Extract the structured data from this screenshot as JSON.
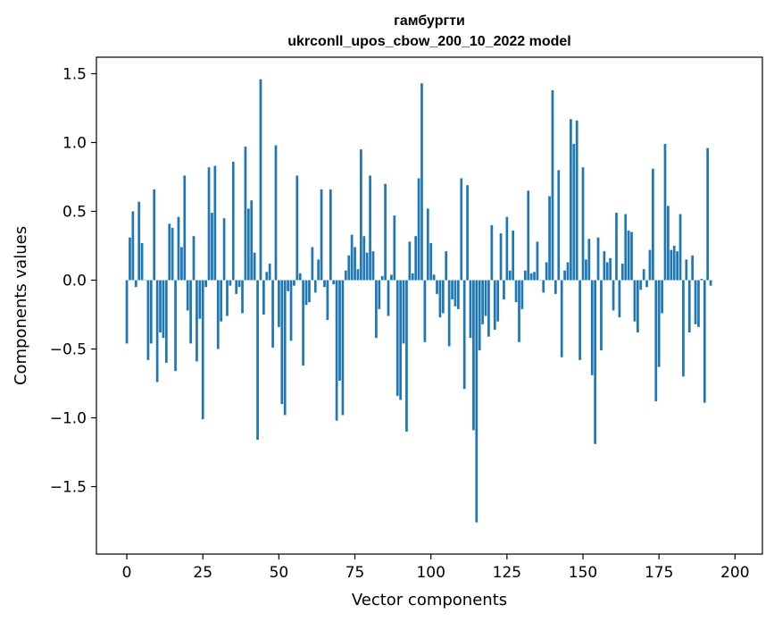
{
  "chart_data": {
    "type": "bar",
    "title": "гамбургти",
    "subtitle": "ukrconll_upos_cbow_200_10_2022 model",
    "xlabel": "Vector components",
    "ylabel": "Components values",
    "xlim": [
      -10,
      209
    ],
    "ylim": [
      -1.99,
      1.62
    ],
    "xticks": [
      0,
      25,
      50,
      75,
      100,
      125,
      150,
      175,
      200
    ],
    "xtick_labels": [
      "0",
      "25",
      "50",
      "75",
      "100",
      "125",
      "150",
      "175",
      "200"
    ],
    "yticks": [
      1.5,
      1.0,
      0.5,
      0.0,
      -0.5,
      -1.0,
      -1.5
    ],
    "ytick_labels": [
      "1.5",
      "1.0",
      "0.5",
      "0.0",
      "−0.5",
      "−1.0",
      "−1.5"
    ],
    "grid": false,
    "bar_color": "#1f77b4",
    "values": [
      -0.46,
      0.31,
      0.5,
      -0.05,
      0.57,
      0.27,
      0.0,
      -0.58,
      -0.46,
      0.66,
      -0.74,
      -0.38,
      -0.42,
      -0.6,
      0.41,
      0.38,
      -0.66,
      0.46,
      0.24,
      0.76,
      -0.22,
      -0.46,
      0.32,
      -0.59,
      -0.28,
      -1.01,
      -0.05,
      0.82,
      0.49,
      0.83,
      -0.5,
      -0.3,
      0.45,
      -0.26,
      -0.04,
      0.86,
      -0.1,
      -0.05,
      -0.24,
      0.97,
      0.52,
      0.58,
      0.2,
      -1.16,
      1.46,
      -0.25,
      0.06,
      0.12,
      -0.49,
      0.98,
      -0.34,
      -0.9,
      -0.98,
      -0.08,
      -0.44,
      -0.04,
      0.76,
      0.05,
      -0.62,
      -0.18,
      -0.16,
      0.24,
      -0.09,
      0.15,
      0.66,
      -0.05,
      -0.29,
      0.66,
      -0.03,
      -1.02,
      -0.73,
      -0.98,
      0.07,
      0.18,
      0.33,
      0.24,
      0.08,
      0.95,
      0.32,
      0.2,
      0.76,
      0.21,
      -0.42,
      -0.21,
      0.03,
      0.7,
      -0.26,
      0.04,
      0.47,
      -0.84,
      -0.87,
      -0.46,
      -1.1,
      0.28,
      0.05,
      0.32,
      0.74,
      1.43,
      -0.45,
      0.52,
      0.27,
      0.04,
      -0.1,
      -0.27,
      -0.24,
      0.21,
      -0.48,
      -0.14,
      -0.19,
      -0.21,
      0.74,
      -0.79,
      0.69,
      -0.42,
      -1.09,
      -1.76,
      -0.51,
      -0.32,
      -0.26,
      -0.41,
      0.4,
      -0.36,
      -0.3,
      0.34,
      -0.14,
      0.46,
      0.07,
      0.36,
      -0.16,
      -0.45,
      -0.21,
      0.07,
      0.65,
      0.05,
      0.06,
      0.28,
      0.0,
      -0.09,
      0.13,
      0.61,
      1.38,
      -0.1,
      0.8,
      -0.56,
      0.07,
      0.13,
      1.17,
      0.99,
      1.16,
      -0.58,
      0.82,
      0.15,
      0.3,
      -0.69,
      -1.19,
      0.31,
      -0.51,
      0.21,
      0.13,
      0.16,
      -0.22,
      0.49,
      -0.27,
      0.12,
      0.48,
      0.36,
      0.35,
      -0.3,
      -0.38,
      -0.07,
      0.08,
      -0.05,
      0.22,
      0.81,
      -0.88,
      -0.63,
      -0.24,
      0.99,
      0.54,
      0.22,
      0.25,
      0.21,
      0.48,
      -0.7,
      0.15,
      -0.38,
      0.18,
      -0.32,
      -0.34,
      0.01,
      -0.89,
      0.96,
      -0.04
    ]
  }
}
